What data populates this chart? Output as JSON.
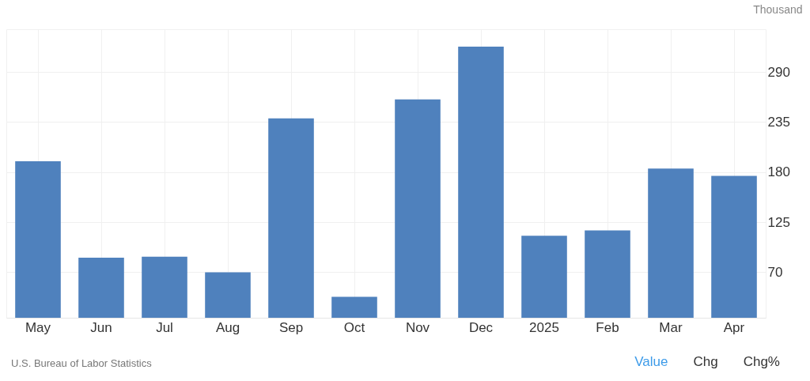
{
  "chart_data": {
    "type": "bar",
    "ylabel": "Thousand",
    "categories": [
      "May",
      "Jun",
      "Jul",
      "Aug",
      "Sep",
      "Oct",
      "Nov",
      "Dec",
      "2025",
      "Feb",
      "Mar",
      "Apr"
    ],
    "values": [
      192,
      86,
      87,
      70,
      239,
      43,
      260,
      318,
      110,
      116,
      184,
      176
    ],
    "color": "#4f81bd",
    "ylim": [
      20,
      337
    ],
    "yticks": [
      70,
      125,
      180,
      235,
      290
    ],
    "grid": true,
    "annotations": [
      "U.S. Bureau of Labor Statistics",
      "Value",
      "Chg",
      "Chg%"
    ]
  }
}
